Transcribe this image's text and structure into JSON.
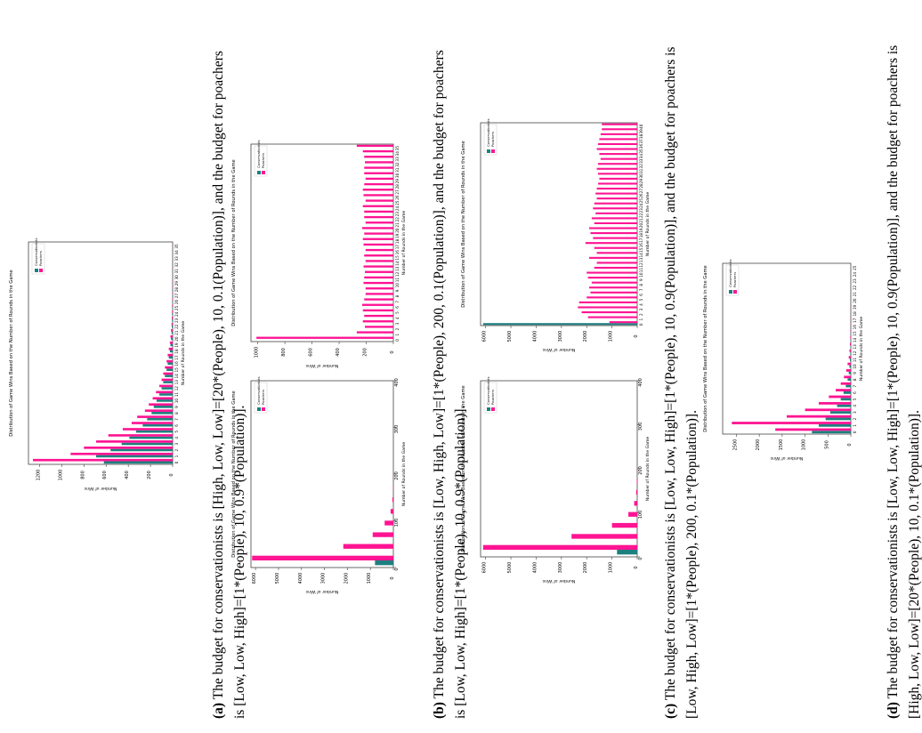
{
  "colors": {
    "conservationists": "#1e7f7f",
    "poachers": "#ff1493",
    "frame": "#444444",
    "text": "#000000"
  },
  "common": {
    "chart_title": "Distribution of Game Wins Based on the Number of Rounds in the Game",
    "xlabel": "Number of Rounds in the Game",
    "ylabel": "Number of Wins",
    "legend_conservationists": "Conservationists",
    "legend_poachers": "Poachers"
  },
  "captions": [
    {
      "tag": "(a)",
      "line1": "The budget for conservationists is [High, Low, Low]=[20*(People), 10, 0.1(Population)], and the budget for poachers",
      "line2": "is [Low, Low, High]=[1*(People), 10, 0.9*(Population)]."
    },
    {
      "tag": "(b)",
      "line1": "The budget for conservationists is [Low, High, Low]=[1*(People), 200, 0.1(Population)], and the budget for poachers",
      "line2": "is [Low, Low, High]=[1*(People), 10, 0.9*(Population)]."
    },
    {
      "tag": "(c)",
      "line1": "The budget for conservationists is [Low, Low, High]=[1*(People), 10, 0.9(Population)], and the budget for poachers is",
      "line2": "[Low, High, Low]=[1*(People), 200, 0.1*(Population)]."
    },
    {
      "tag": "(d)",
      "line1": "The budget for conservationists is [Low, Low, High]=[1*(People), 10, 0.9(Population)], and the budget for poachers is",
      "line2": "[High, Low, Low]=[20*(People), 10, 0.1*(Population)]."
    }
  ],
  "chart_data": [
    {
      "id": "a",
      "type": "bar",
      "ylim": [
        0,
        1300
      ],
      "yticks": [
        0,
        200,
        400,
        600,
        800,
        1000,
        1200
      ],
      "categories": [
        "0",
        "1",
        "2",
        "3",
        "4",
        "5",
        "6",
        "7",
        "8",
        "9",
        "10",
        "11",
        "12",
        "13",
        "14",
        "15",
        "16",
        "17",
        "18",
        "19",
        "20",
        "21",
        "22",
        "23",
        "24",
        "25",
        "26",
        "27",
        "28",
        "29",
        "30",
        "31",
        "32",
        "33",
        "34",
        "35"
      ],
      "series": [
        {
          "name": "Conservationists",
          "values": [
            620,
            690,
            560,
            460,
            390,
            330,
            270,
            230,
            190,
            170,
            145,
            120,
            100,
            85,
            70,
            55,
            45,
            35,
            25,
            20,
            15,
            10,
            8,
            6,
            5,
            4,
            3,
            2,
            2,
            1,
            1,
            1,
            1,
            0,
            0,
            0
          ]
        },
        {
          "name": "Poachers",
          "values": [
            1260,
            920,
            800,
            690,
            580,
            450,
            370,
            320,
            250,
            215,
            180,
            150,
            120,
            100,
            85,
            70,
            55,
            45,
            35,
            25,
            20,
            15,
            10,
            8,
            6,
            5,
            4,
            3,
            2,
            2,
            1,
            1,
            1,
            0,
            0,
            1
          ]
        }
      ]
    },
    {
      "id": "a2",
      "type": "bar",
      "ylim": [
        0,
        1050
      ],
      "yticks": [
        0,
        200,
        400,
        600,
        800,
        1000
      ],
      "categories": [
        "0",
        "1",
        "2",
        "3",
        "4",
        "5",
        "6",
        "7",
        "8",
        "9",
        "10",
        "11",
        "12",
        "13",
        "14",
        "15",
        "16",
        "17",
        "18",
        "19",
        "20",
        "21",
        "22",
        "23",
        "24",
        "25",
        "26",
        "27",
        "28",
        "29",
        "30",
        "31",
        "32",
        "33",
        "34",
        "35"
      ],
      "series": [
        {
          "name": "Conservationists",
          "values": [
            0,
            0,
            0,
            0,
            0,
            0,
            0,
            0,
            0,
            0,
            0,
            0,
            0,
            0,
            0,
            0,
            0,
            0,
            0,
            0,
            0,
            0,
            0,
            0,
            0,
            0,
            0,
            0,
            0,
            0,
            0,
            0,
            0,
            0,
            0,
            0
          ]
        },
        {
          "name": "Poachers",
          "values": [
            1010,
            270,
            210,
            225,
            215,
            225,
            230,
            215,
            205,
            205,
            220,
            215,
            210,
            220,
            205,
            215,
            205,
            220,
            225,
            215,
            230,
            205,
            215,
            215,
            225,
            205,
            220,
            225,
            215,
            205,
            215,
            215,
            210,
            215,
            225,
            270
          ]
        }
      ]
    },
    {
      "id": "b",
      "type": "bar",
      "ylim": [
        0,
        6200
      ],
      "yticks": [
        0,
        1000,
        2000,
        3000,
        4000,
        5000,
        6000
      ],
      "xlim": [
        0,
        400
      ],
      "xticks": [
        0,
        100,
        200,
        300,
        400
      ],
      "categories": [
        "0",
        "1",
        "2",
        "3",
        "4",
        "5",
        "6",
        "7",
        "8",
        "9",
        "10",
        "11",
        "12",
        "13",
        "14",
        "15"
      ],
      "series": [
        {
          "name": "Conservationists",
          "values": [
            800,
            0,
            0,
            0,
            0,
            0,
            0,
            0,
            0,
            0,
            0,
            0,
            0,
            0,
            0,
            0
          ]
        },
        {
          "name": "Poachers",
          "values": [
            6150,
            2180,
            900,
            380,
            120,
            40,
            15,
            5,
            0,
            0,
            0,
            0,
            0,
            0,
            0,
            0
          ]
        }
      ]
    },
    {
      "id": "c",
      "type": "bar",
      "ylim": [
        0,
        6200
      ],
      "yticks": [
        0,
        1000,
        2000,
        3000,
        4000,
        5000,
        6000
      ],
      "xlim": [
        0,
        400
      ],
      "xticks": [
        0,
        100,
        200,
        300,
        400
      ],
      "categories": [
        "0",
        "1",
        "2",
        "3",
        "4",
        "5",
        "6",
        "7",
        "8",
        "9",
        "10",
        "11",
        "12",
        "13",
        "14",
        "15"
      ],
      "series": [
        {
          "name": "Conservationists",
          "values": [
            800,
            0,
            0,
            0,
            0,
            0,
            0,
            0,
            0,
            0,
            0,
            0,
            0,
            0,
            0,
            0
          ]
        },
        {
          "name": "Poachers",
          "values": [
            6100,
            2600,
            1000,
            350,
            120,
            40,
            15,
            5,
            0,
            0,
            0,
            0,
            0,
            0,
            0,
            0
          ]
        }
      ]
    },
    {
      "id": "c2",
      "type": "bar",
      "ylim": [
        0,
        6200
      ],
      "yticks": [
        0,
        1000,
        2000,
        3000,
        4000,
        5000,
        6000
      ],
      "categories": [
        "0",
        "1",
        "2",
        "3",
        "4",
        "5",
        "6",
        "7",
        "8",
        "9",
        "10",
        "11",
        "12",
        "13",
        "14",
        "15",
        "16",
        "17",
        "18",
        "19",
        "20",
        "21",
        "22",
        "23",
        "24",
        "25",
        "26",
        "27",
        "28",
        "29",
        "30",
        "31",
        "32",
        "33",
        "34",
        "35",
        "36",
        "37",
        "38",
        "39",
        "40"
      ],
      "series": [
        {
          "name": "Conservationists",
          "values": [
            6100,
            0,
            0,
            0,
            0,
            0,
            0,
            0,
            0,
            0,
            0,
            0,
            0,
            0,
            0,
            0,
            0,
            0,
            0,
            0,
            0,
            0,
            0,
            0,
            0,
            0,
            0,
            0,
            0,
            0,
            0,
            0,
            0,
            0,
            0,
            0,
            0,
            0,
            0,
            0,
            0
          ]
        },
        {
          "name": "Poachers",
          "values": [
            1100,
            1950,
            2200,
            2350,
            2300,
            2000,
            1850,
            1900,
            1800,
            1950,
            2000,
            1700,
            1600,
            1900,
            1600,
            1700,
            2050,
            1750,
            1850,
            1900,
            1700,
            1800,
            1650,
            1750,
            1700,
            1600,
            1650,
            1600,
            1550,
            1500,
            1550,
            1600,
            1550,
            1450,
            1500,
            1600,
            1550,
            1500,
            1450,
            1400,
            1400
          ]
        }
      ]
    },
    {
      "id": "d",
      "type": "bar",
      "ylim": [
        0,
        2800
      ],
      "yticks": [
        0,
        500,
        1000,
        1500,
        2000,
        2500
      ],
      "categories": [
        "0",
        "1",
        "2",
        "3",
        "4",
        "5",
        "6",
        "7",
        "8",
        "9",
        "10",
        "11",
        "12",
        "13",
        "14",
        "15",
        "16",
        "17",
        "18",
        "19",
        "20",
        "21",
        "22",
        "23",
        "24",
        "25"
      ],
      "series": [
        {
          "name": "Conservationists",
          "values": [
            850,
            700,
            550,
            450,
            300,
            220,
            160,
            110,
            70,
            45,
            30,
            20,
            12,
            8,
            5,
            3,
            2,
            1,
            1,
            0,
            0,
            0,
            0,
            0,
            0,
            0
          ]
        },
        {
          "name": "Poachers",
          "values": [
            1650,
            2600,
            1400,
            1000,
            700,
            480,
            330,
            220,
            150,
            100,
            70,
            45,
            30,
            20,
            12,
            8,
            5,
            3,
            2,
            1,
            1,
            0,
            0,
            0,
            0,
            0
          ]
        }
      ]
    }
  ]
}
